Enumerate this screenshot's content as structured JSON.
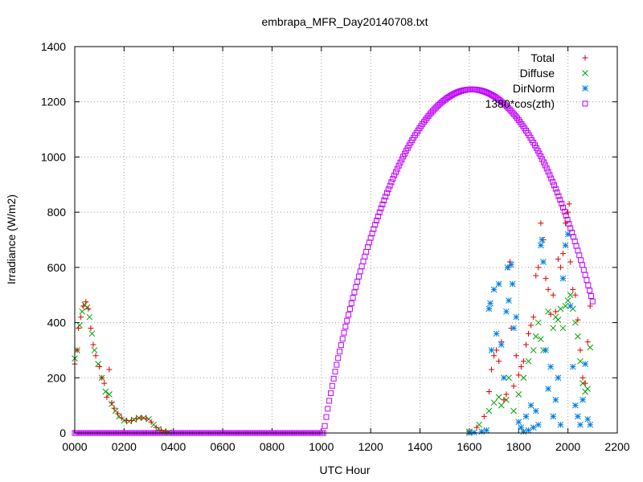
{
  "chart_data": {
    "type": "scatter",
    "title": "embrapa_MFR_Day20140708.txt",
    "xlabel": "UTC Hour",
    "ylabel": "Irradiance (W/m2)",
    "xlim": [
      0,
      2200
    ],
    "ylim": [
      0,
      1400
    ],
    "x_ticks": [
      "0000",
      "0200",
      "0400",
      "0600",
      "0800",
      "1000",
      "1200",
      "1400",
      "1600",
      "1800",
      "2000",
      "2200"
    ],
    "y_ticks": [
      "0",
      "200",
      "400",
      "600",
      "800",
      "1000",
      "1200",
      "1400"
    ],
    "grid": true,
    "legend_position": "top-right",
    "series": [
      {
        "name": "Total",
        "marker": "plus",
        "color": "#e00000",
        "points": [
          [
            0,
            250
          ],
          [
            10,
            300
          ],
          [
            15,
            380
          ],
          [
            25,
            420
          ],
          [
            35,
            460
          ],
          [
            45,
            475
          ],
          [
            55,
            450
          ],
          [
            65,
            380
          ],
          [
            75,
            320
          ],
          [
            85,
            280
          ],
          [
            100,
            240
          ],
          [
            110,
            200
          ],
          [
            120,
            180
          ],
          [
            130,
            130
          ],
          [
            140,
            230
          ],
          [
            150,
            110
          ],
          [
            160,
            90
          ],
          [
            175,
            70
          ],
          [
            190,
            55
          ],
          [
            210,
            45
          ],
          [
            230,
            45
          ],
          [
            250,
            52
          ],
          [
            270,
            55
          ],
          [
            290,
            52
          ],
          [
            310,
            40
          ],
          [
            330,
            20
          ],
          [
            350,
            10
          ],
          [
            370,
            5
          ],
          [
            1600,
            5
          ],
          [
            1630,
            20
          ],
          [
            1660,
            60
          ],
          [
            1680,
            150
          ],
          [
            1690,
            230
          ],
          [
            1700,
            280
          ],
          [
            1710,
            300
          ],
          [
            1720,
            260
          ],
          [
            1730,
            330
          ],
          [
            1740,
            120
          ],
          [
            1750,
            140
          ],
          [
            1760,
            600
          ],
          [
            1765,
            620
          ],
          [
            1770,
            380
          ],
          [
            1780,
            170
          ],
          [
            1790,
            280
          ],
          [
            1800,
            210
          ],
          [
            1810,
            240
          ],
          [
            1820,
            260
          ],
          [
            1830,
            320
          ],
          [
            1840,
            360
          ],
          [
            1850,
            390
          ],
          [
            1860,
            420
          ],
          [
            1870,
            570
          ],
          [
            1880,
            600
          ],
          [
            1890,
            760
          ],
          [
            1900,
            700
          ],
          [
            1910,
            560
          ],
          [
            1920,
            520
          ],
          [
            1930,
            430
          ],
          [
            1940,
            500
          ],
          [
            1950,
            440
          ],
          [
            1960,
            630
          ],
          [
            1970,
            600
          ],
          [
            1980,
            650
          ],
          [
            1990,
            760
          ],
          [
            2000,
            800
          ],
          [
            2005,
            830
          ],
          [
            2010,
            620
          ],
          [
            2020,
            520
          ],
          [
            2030,
            500
          ],
          [
            2040,
            410
          ],
          [
            2050,
            300
          ],
          [
            2060,
            200
          ],
          [
            2070,
            180
          ],
          [
            2080,
            330
          ],
          [
            2090,
            460
          ]
        ]
      },
      {
        "name": "Diffuse",
        "marker": "cross",
        "color": "#00a000",
        "points": [
          [
            0,
            270
          ],
          [
            10,
            300
          ],
          [
            20,
            390
          ],
          [
            30,
            440
          ],
          [
            40,
            465
          ],
          [
            50,
            455
          ],
          [
            60,
            420
          ],
          [
            70,
            360
          ],
          [
            80,
            300
          ],
          [
            95,
            250
          ],
          [
            110,
            200
          ],
          [
            125,
            150
          ],
          [
            140,
            140
          ],
          [
            150,
            105
          ],
          [
            165,
            80
          ],
          [
            180,
            60
          ],
          [
            200,
            45
          ],
          [
            220,
            42
          ],
          [
            240,
            48
          ],
          [
            260,
            55
          ],
          [
            280,
            55
          ],
          [
            300,
            50
          ],
          [
            320,
            30
          ],
          [
            340,
            15
          ],
          [
            360,
            6
          ],
          [
            380,
            2
          ],
          [
            1600,
            5
          ],
          [
            1640,
            30
          ],
          [
            1680,
            80
          ],
          [
            1700,
            110
          ],
          [
            1720,
            130
          ],
          [
            1730,
            100
          ],
          [
            1750,
            120
          ],
          [
            1760,
            200
          ],
          [
            1780,
            80
          ],
          [
            1800,
            140
          ],
          [
            1820,
            200
          ],
          [
            1840,
            260
          ],
          [
            1860,
            300
          ],
          [
            1870,
            350
          ],
          [
            1880,
            400
          ],
          [
            1890,
            340
          ],
          [
            1900,
            300
          ],
          [
            1920,
            440
          ],
          [
            1940,
            380
          ],
          [
            1950,
            420
          ],
          [
            1960,
            410
          ],
          [
            1970,
            450
          ],
          [
            1980,
            380
          ],
          [
            1990,
            460
          ],
          [
            2000,
            480
          ],
          [
            2010,
            500
          ],
          [
            2020,
            450
          ],
          [
            2030,
            400
          ],
          [
            2040,
            350
          ],
          [
            2050,
            260
          ],
          [
            2060,
            180
          ],
          [
            2070,
            150
          ],
          [
            2080,
            160
          ],
          [
            2090,
            310
          ]
        ]
      },
      {
        "name": "DirNorm",
        "marker": "star",
        "color": "#0080e0",
        "points": [
          [
            1600,
            0
          ],
          [
            1620,
            2
          ],
          [
            1650,
            5
          ],
          [
            1670,
            10
          ],
          [
            1680,
            450
          ],
          [
            1685,
            470
          ],
          [
            1690,
            300
          ],
          [
            1700,
            520
          ],
          [
            1710,
            360
          ],
          [
            1720,
            540
          ],
          [
            1730,
            320
          ],
          [
            1740,
            200
          ],
          [
            1750,
            440
          ],
          [
            1755,
            600
          ],
          [
            1760,
            480
          ],
          [
            1770,
            610
          ],
          [
            1775,
            540
          ],
          [
            1780,
            380
          ],
          [
            1790,
            420
          ],
          [
            1800,
            40
          ],
          [
            1810,
            20
          ],
          [
            1820,
            5
          ],
          [
            1830,
            60
          ],
          [
            1840,
            10
          ],
          [
            1850,
            100
          ],
          [
            1860,
            20
          ],
          [
            1870,
            80
          ],
          [
            1880,
            30
          ],
          [
            1890,
            680
          ],
          [
            1895,
            700
          ],
          [
            1900,
            620
          ],
          [
            1910,
            300
          ],
          [
            1920,
            160
          ],
          [
            1930,
            240
          ],
          [
            1940,
            60
          ],
          [
            1950,
            120
          ],
          [
            1960,
            200
          ],
          [
            1970,
            30
          ],
          [
            1980,
            560
          ],
          [
            1990,
            680
          ],
          [
            2000,
            720
          ],
          [
            2010,
            460
          ],
          [
            2020,
            240
          ],
          [
            2030,
            100
          ],
          [
            2040,
            60
          ],
          [
            2050,
            30
          ],
          [
            2060,
            120
          ],
          [
            2070,
            250
          ],
          [
            2080,
            50
          ],
          [
            2090,
            30
          ]
        ]
      },
      {
        "name": "1380*cos(zth)",
        "marker": "square",
        "color": "#c000ff",
        "model": {
          "rise": 1010,
          "set": 2215,
          "peak": 1610,
          "peak_value": 1245
        }
      }
    ]
  }
}
